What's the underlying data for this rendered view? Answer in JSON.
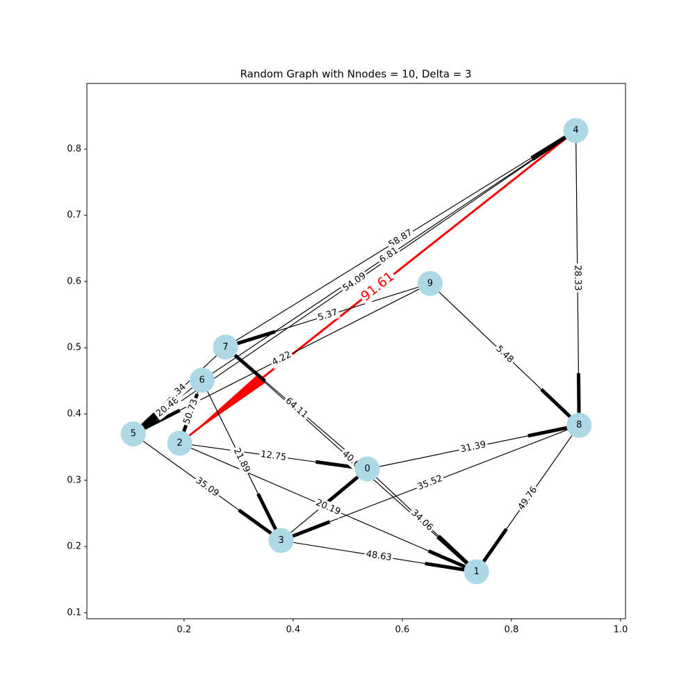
{
  "chart_data": {
    "type": "network",
    "title": "Random Graph with Nnodes = 10, Delta = 3",
    "xlim": [
      0.022,
      1.009
    ],
    "ylim": [
      0.091,
      0.899
    ],
    "xticks": [
      0.2,
      0.4,
      0.6,
      0.8,
      {
        "value": 1.0,
        "label": "1.0"
      }
    ],
    "yticks": [
      0.1,
      0.2,
      0.3,
      0.4,
      0.5,
      0.6,
      0.7,
      0.8
    ],
    "node_color": "#add8e6",
    "edge_color": "#000000",
    "nodes": [
      {
        "label": "0",
        "x": 0.536,
        "y": 0.317
      },
      {
        "label": "1",
        "x": 0.736,
        "y": 0.162
      },
      {
        "label": "2",
        "x": 0.192,
        "y": 0.356
      },
      {
        "label": "3",
        "x": 0.378,
        "y": 0.209
      },
      {
        "label": "4",
        "x": 0.918,
        "y": 0.828
      },
      {
        "label": "5",
        "x": 0.107,
        "y": 0.37
      },
      {
        "label": "6",
        "x": 0.233,
        "y": 0.451
      },
      {
        "label": "7",
        "x": 0.276,
        "y": 0.501
      },
      {
        "label": "8",
        "x": 0.924,
        "y": 0.383
      },
      {
        "label": "9",
        "x": 0.651,
        "y": 0.597
      }
    ],
    "edges": [
      {
        "source": 4,
        "target": 2,
        "weight": 91.61,
        "color": "#ff0000"
      },
      {
        "source": 7,
        "target": 4,
        "weight": 58.87
      },
      {
        "source": 6,
        "target": 4,
        "weight": 6.81
      },
      {
        "source": 4,
        "target": 5,
        "weight": 54.09
      },
      {
        "source": 9,
        "target": 5,
        "weight": 4.22
      },
      {
        "source": 9,
        "target": 7,
        "weight": 5.37
      },
      {
        "source": 9,
        "target": 8,
        "weight": 5.48
      },
      {
        "source": 4,
        "target": 8,
        "weight": 28.33
      },
      {
        "source": 0,
        "target": 7,
        "weight": 64.11
      },
      {
        "source": 7,
        "target": 1,
        "weight": 40.6
      },
      {
        "source": 0,
        "target": 1,
        "weight": 34.06
      },
      {
        "source": 0,
        "target": 8,
        "weight": 31.39
      },
      {
        "source": 8,
        "target": 3,
        "weight": 35.52
      },
      {
        "source": 8,
        "target": 1,
        "weight": 49.76
      },
      {
        "source": 3,
        "target": 1,
        "weight": 48.63
      },
      {
        "source": 2,
        "target": 0,
        "weight": 12.75
      },
      {
        "source": 2,
        "target": 1,
        "weight": 20.19
      },
      {
        "source": 6,
        "target": 3,
        "weight": 21.89
      },
      {
        "source": 5,
        "target": 3,
        "weight": 35.09
      },
      {
        "source": 3,
        "target": 0
      },
      {
        "source": 6,
        "target": 5,
        "weight": 20.48
      },
      {
        "source": 6,
        "target": 2,
        "weight": 50.73
      },
      {
        "source": 7,
        "target": 5,
        "label": ".34"
      }
    ]
  }
}
